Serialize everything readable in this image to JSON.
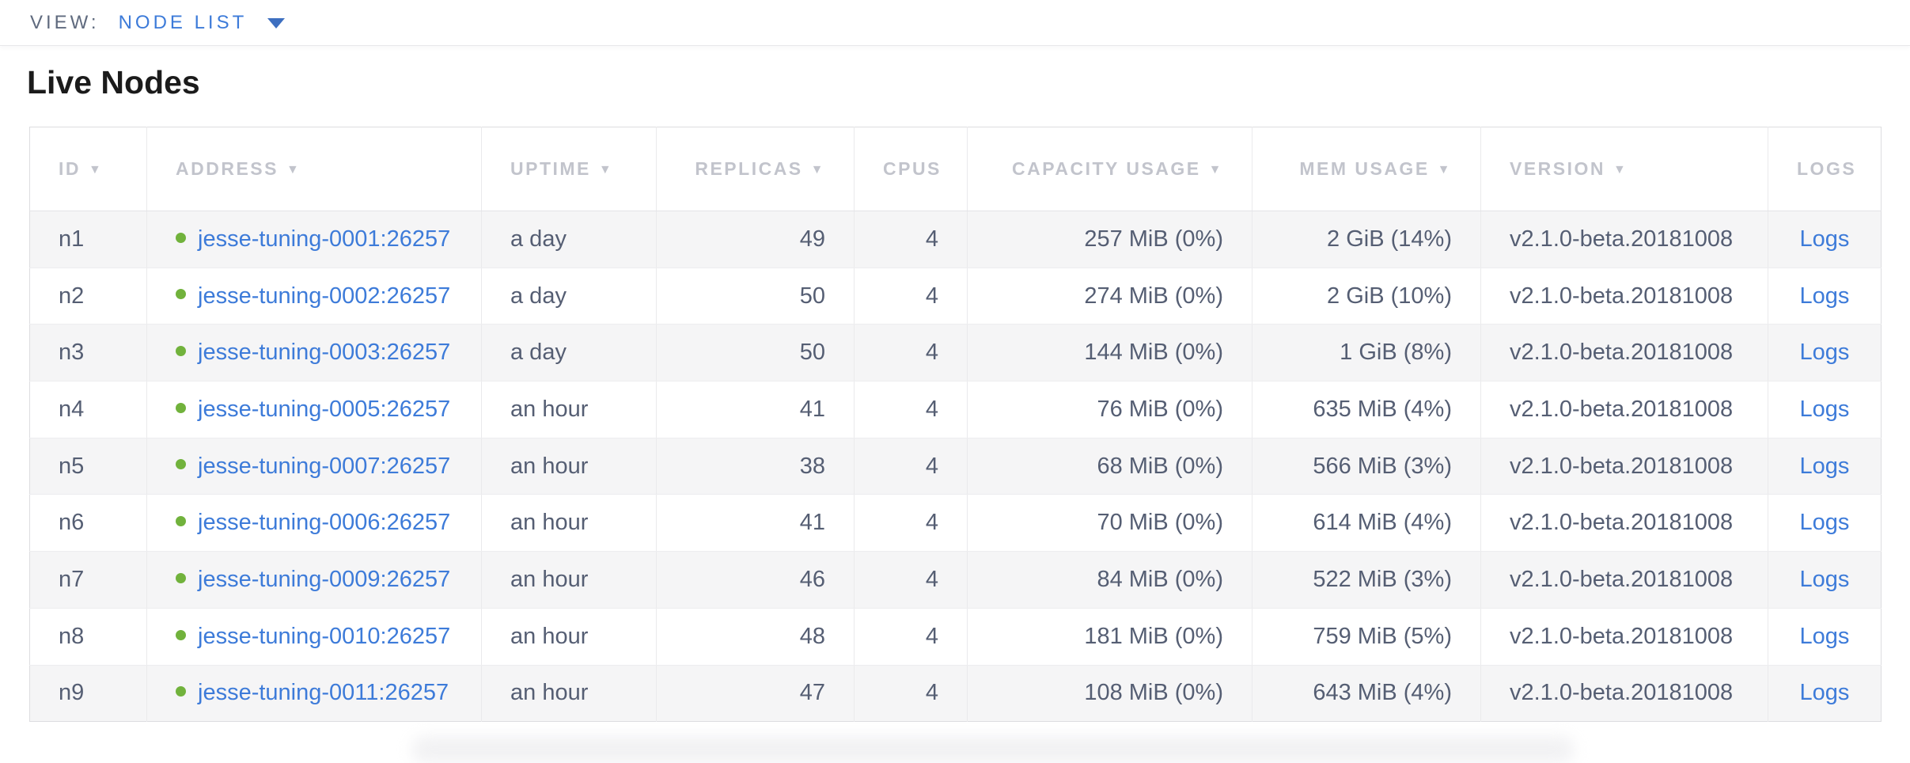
{
  "view_bar": {
    "label": "VIEW:",
    "selected_view": "NODE LIST"
  },
  "page": {
    "title": "Live Nodes"
  },
  "table": {
    "columns": [
      {
        "key": "id",
        "label": "ID",
        "sortable": true,
        "align": "left"
      },
      {
        "key": "address",
        "label": "ADDRESS",
        "sortable": true,
        "align": "left"
      },
      {
        "key": "uptime",
        "label": "UPTIME",
        "sortable": true,
        "align": "left"
      },
      {
        "key": "replicas",
        "label": "REPLICAS",
        "sortable": true,
        "align": "right"
      },
      {
        "key": "cpus",
        "label": "CPUS",
        "sortable": false,
        "align": "right"
      },
      {
        "key": "capacity_usage",
        "label": "CAPACITY USAGE",
        "sortable": true,
        "align": "right"
      },
      {
        "key": "mem_usage",
        "label": "MEM USAGE",
        "sortable": true,
        "align": "right"
      },
      {
        "key": "version",
        "label": "VERSION",
        "sortable": true,
        "align": "left"
      },
      {
        "key": "logs",
        "label": "LOGS",
        "sortable": false,
        "align": "center"
      }
    ],
    "rows": [
      {
        "id": "n1",
        "status": "live",
        "address": "jesse-tuning-0001:26257",
        "uptime": "a day",
        "replicas": "49",
        "cpus": "4",
        "capacity_usage": "257 MiB (0%)",
        "mem_usage": "2 GiB (14%)",
        "version": "v2.1.0-beta.20181008",
        "logs": "Logs"
      },
      {
        "id": "n2",
        "status": "live",
        "address": "jesse-tuning-0002:26257",
        "uptime": "a day",
        "replicas": "50",
        "cpus": "4",
        "capacity_usage": "274 MiB (0%)",
        "mem_usage": "2 GiB (10%)",
        "version": "v2.1.0-beta.20181008",
        "logs": "Logs"
      },
      {
        "id": "n3",
        "status": "live",
        "address": "jesse-tuning-0003:26257",
        "uptime": "a day",
        "replicas": "50",
        "cpus": "4",
        "capacity_usage": "144 MiB (0%)",
        "mem_usage": "1 GiB (8%)",
        "version": "v2.1.0-beta.20181008",
        "logs": "Logs"
      },
      {
        "id": "n4",
        "status": "live",
        "address": "jesse-tuning-0005:26257",
        "uptime": "an hour",
        "replicas": "41",
        "cpus": "4",
        "capacity_usage": "76 MiB (0%)",
        "mem_usage": "635 MiB (4%)",
        "version": "v2.1.0-beta.20181008",
        "logs": "Logs"
      },
      {
        "id": "n5",
        "status": "live",
        "address": "jesse-tuning-0007:26257",
        "uptime": "an hour",
        "replicas": "38",
        "cpus": "4",
        "capacity_usage": "68 MiB (0%)",
        "mem_usage": "566 MiB (3%)",
        "version": "v2.1.0-beta.20181008",
        "logs": "Logs"
      },
      {
        "id": "n6",
        "status": "live",
        "address": "jesse-tuning-0006:26257",
        "uptime": "an hour",
        "replicas": "41",
        "cpus": "4",
        "capacity_usage": "70 MiB (0%)",
        "mem_usage": "614 MiB (4%)",
        "version": "v2.1.0-beta.20181008",
        "logs": "Logs"
      },
      {
        "id": "n7",
        "status": "live",
        "address": "jesse-tuning-0009:26257",
        "uptime": "an hour",
        "replicas": "46",
        "cpus": "4",
        "capacity_usage": "84 MiB (0%)",
        "mem_usage": "522 MiB (3%)",
        "version": "v2.1.0-beta.20181008",
        "logs": "Logs"
      },
      {
        "id": "n8",
        "status": "live",
        "address": "jesse-tuning-0010:26257",
        "uptime": "an hour",
        "replicas": "48",
        "cpus": "4",
        "capacity_usage": "181 MiB (0%)",
        "mem_usage": "759 MiB (5%)",
        "version": "v2.1.0-beta.20181008",
        "logs": "Logs"
      },
      {
        "id": "n9",
        "status": "live",
        "address": "jesse-tuning-0011:26257",
        "uptime": "an hour",
        "replicas": "47",
        "cpus": "4",
        "capacity_usage": "108 MiB (0%)",
        "mem_usage": "643 MiB (4%)",
        "version": "v2.1.0-beta.20181008",
        "logs": "Logs"
      }
    ]
  },
  "colors": {
    "accent_blue": "#3d7bd9",
    "live_green": "#71b23c",
    "header_text_gray": "#c2c4cc",
    "cell_text_slate": "#555e73",
    "row_stripe": "#f5f5f6"
  }
}
